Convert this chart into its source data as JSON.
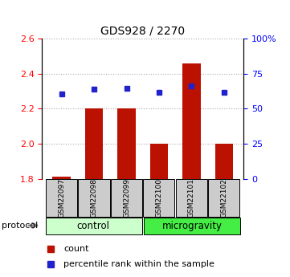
{
  "title": "GDS928 / 2270",
  "samples": [
    "GSM22097",
    "GSM22098",
    "GSM22099",
    "GSM22100",
    "GSM22101",
    "GSM22102"
  ],
  "red_values": [
    1.81,
    2.2,
    2.2,
    2.0,
    2.46,
    2.0
  ],
  "blue_values": [
    2.285,
    2.31,
    2.315,
    2.295,
    2.33,
    2.295
  ],
  "red_base": 1.8,
  "ylim": [
    1.8,
    2.6
  ],
  "yticks": [
    1.8,
    2.0,
    2.2,
    2.4,
    2.6
  ],
  "right_ytick_positions": [
    1.8,
    2.0,
    2.2,
    2.4,
    2.6
  ],
  "right_ytick_labels": [
    "0",
    "25",
    "50",
    "75",
    "100%"
  ],
  "control_label": "control",
  "microgravity_label": "microgravity",
  "protocol_label": "protocol",
  "legend_count": "count",
  "legend_percentile": "percentile rank within the sample",
  "bar_color": "#bb1100",
  "dot_color": "#2222cc",
  "control_bg": "#ccffcc",
  "microgravity_bg": "#44ee44",
  "sample_bg": "#cccccc",
  "grid_color": "#aaaaaa",
  "bar_width": 0.55,
  "title_fontsize": 10,
  "tick_fontsize": 8,
  "label_fontsize": 8
}
